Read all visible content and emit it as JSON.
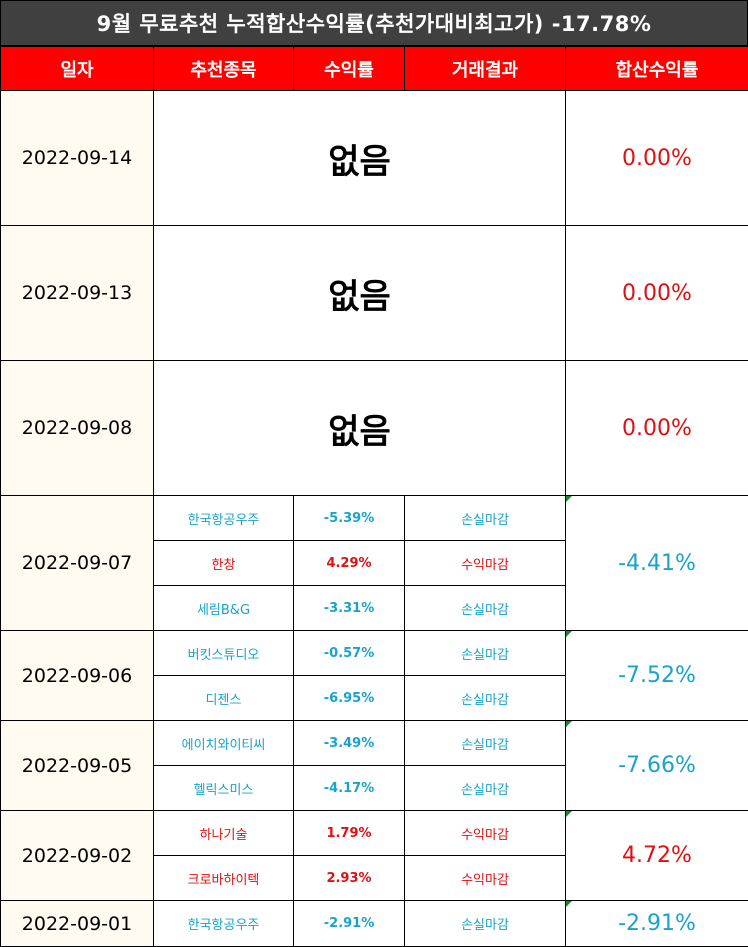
{
  "title": "9월 무료추천 누적합산수익률(추천가대비최고가) -17.78%",
  "headers": [
    "일자",
    "추천종목",
    "수익률",
    "거래결과",
    "합산수익률"
  ],
  "colors": {
    "header_bg": "#ff0000",
    "title_bg": "#404040",
    "loss": "#19a3c9",
    "gain": "#e01010"
  },
  "groups": [
    {
      "date": "2022-09-14",
      "none_text": "없음",
      "total": "0.00%",
      "total_color": "red",
      "items": []
    },
    {
      "date": "2022-09-13",
      "none_text": "없음",
      "total": "0.00%",
      "total_color": "red",
      "items": []
    },
    {
      "date": "2022-09-08",
      "none_text": "없음",
      "total": "0.00%",
      "total_color": "red",
      "items": []
    },
    {
      "date": "2022-09-07",
      "total": "-4.41%",
      "total_color": "blue",
      "items": [
        {
          "stock": "한국항공우주",
          "return": "-5.39%",
          "result": "손실마감",
          "color": "blue"
        },
        {
          "stock": "한창",
          "return": "4.29%",
          "result": "수익마감",
          "color": "red"
        },
        {
          "stock": "세림B&G",
          "return": "-3.31%",
          "result": "손실마감",
          "color": "blue"
        }
      ]
    },
    {
      "date": "2022-09-06",
      "total": "-7.52%",
      "total_color": "blue",
      "items": [
        {
          "stock": "버킷스튜디오",
          "return": "-0.57%",
          "result": "손실마감",
          "color": "blue"
        },
        {
          "stock": "디젠스",
          "return": "-6.95%",
          "result": "손실마감",
          "color": "blue"
        }
      ]
    },
    {
      "date": "2022-09-05",
      "total": "-7.66%",
      "total_color": "blue",
      "items": [
        {
          "stock": "에이치와이티씨",
          "return": "-3.49%",
          "result": "손실마감",
          "color": "blue"
        },
        {
          "stock": "헬릭스미스",
          "return": "-4.17%",
          "result": "손실마감",
          "color": "blue"
        }
      ]
    },
    {
      "date": "2022-09-02",
      "total": "4.72%",
      "total_color": "red",
      "items": [
        {
          "stock": "하나기술",
          "return": "1.79%",
          "result": "수익마감",
          "color": "red"
        },
        {
          "stock": "크로바하이텍",
          "return": "2.93%",
          "result": "수익마감",
          "color": "red"
        }
      ]
    },
    {
      "date": "2022-09-01",
      "total": "-2.91%",
      "total_color": "blue",
      "items": [
        {
          "stock": "한국항공우주",
          "return": "-2.91%",
          "result": "손실마감",
          "color": "blue"
        }
      ]
    }
  ]
}
